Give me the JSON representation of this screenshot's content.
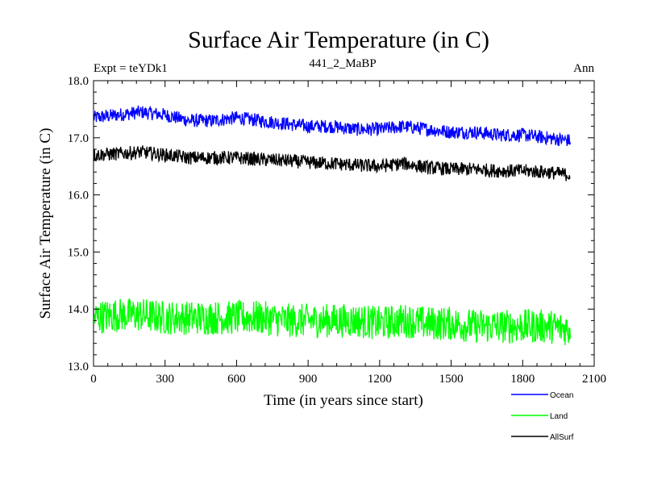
{
  "chart_data": {
    "type": "line",
    "title": "Surface Air Temperature (in C)",
    "subtitle": "441_2_MaBP",
    "left_label": "Expt = teYDk1",
    "right_label": "Ann",
    "xlabel": "Time (in years since start)",
    "ylabel": "Surface Air Temperature (in C)",
    "xlim": [
      0,
      2100
    ],
    "ylim": [
      13.0,
      18.0
    ],
    "x_ticks": [
      0,
      300,
      600,
      900,
      1200,
      1500,
      1800,
      2100
    ],
    "x_tick_labels": [
      "0",
      "300",
      "600",
      "900",
      "1200",
      "1500",
      "1800",
      "2100"
    ],
    "y_ticks": [
      13.0,
      14.0,
      15.0,
      16.0,
      17.0,
      18.0
    ],
    "y_tick_labels": [
      "13.0",
      "14.0",
      "15.0",
      "16.0",
      "17.0",
      "18.0"
    ],
    "x": [
      0,
      100,
      200,
      300,
      400,
      500,
      600,
      700,
      800,
      900,
      1000,
      1100,
      1200,
      1300,
      1400,
      1500,
      1600,
      1700,
      1800,
      1900,
      2000
    ],
    "series": [
      {
        "name": "Ocean",
        "color": "#0000ff",
        "values": [
          17.35,
          17.4,
          17.45,
          17.4,
          17.3,
          17.3,
          17.35,
          17.3,
          17.25,
          17.2,
          17.2,
          17.15,
          17.15,
          17.2,
          17.15,
          17.1,
          17.1,
          17.05,
          17.05,
          17.0,
          16.95
        ],
        "noise": 0.12
      },
      {
        "name": "Land",
        "color": "#00ff00",
        "values": [
          13.85,
          13.9,
          13.9,
          13.85,
          13.85,
          13.85,
          13.85,
          13.85,
          13.8,
          13.8,
          13.8,
          13.8,
          13.75,
          13.8,
          13.75,
          13.75,
          13.7,
          13.7,
          13.7,
          13.7,
          13.65
        ],
        "noise": 0.3
      },
      {
        "name": "AllSurf",
        "color": "#000000",
        "values": [
          16.7,
          16.72,
          16.75,
          16.7,
          16.65,
          16.65,
          16.65,
          16.62,
          16.6,
          16.57,
          16.55,
          16.52,
          16.5,
          16.55,
          16.48,
          16.45,
          16.45,
          16.42,
          16.42,
          16.4,
          16.35
        ],
        "noise": 0.12
      }
    ],
    "legend_placement": "bottom-right"
  }
}
